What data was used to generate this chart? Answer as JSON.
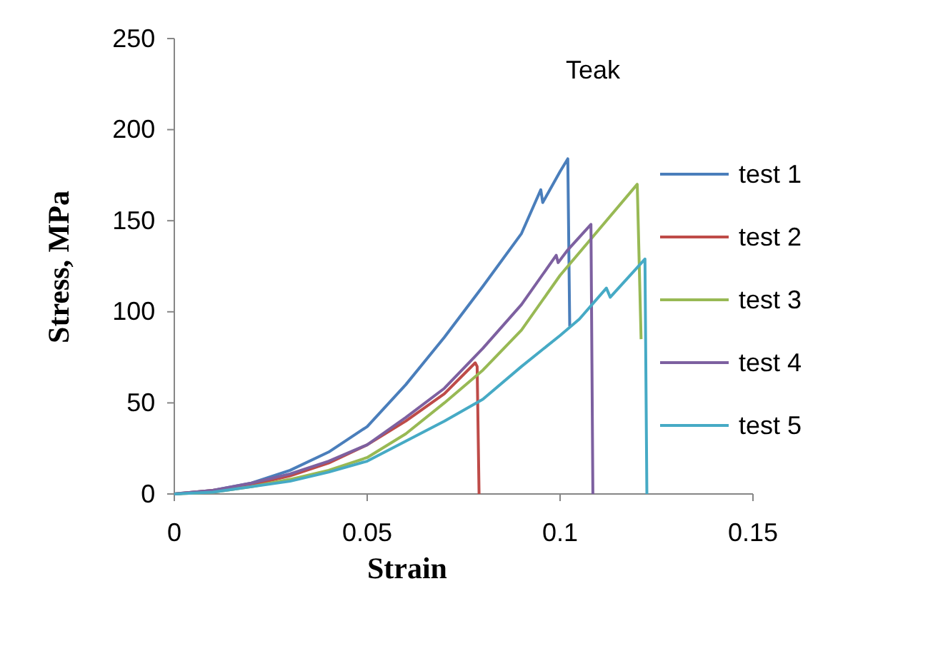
{
  "chart_data": {
    "type": "line",
    "title": "Teak",
    "xlabel": "Strain",
    "ylabel": "Stress, MPa",
    "xlim": [
      0,
      0.15
    ],
    "xticks": [
      0,
      0.05,
      0.1,
      0.15
    ],
    "ylim": [
      0,
      250
    ],
    "yticks": [
      0,
      50,
      100,
      150,
      200,
      250
    ],
    "grid": false,
    "legend": "right",
    "marker": "none",
    "line_style": "solid",
    "series": [
      {
        "name": "test 1",
        "color": "#4a7ebb",
        "x": [
          0,
          0.01,
          0.02,
          0.03,
          0.04,
          0.05,
          0.06,
          0.07,
          0.08,
          0.09,
          0.095,
          0.0955,
          0.1,
          0.102,
          0.1025
        ],
        "values": [
          0,
          2,
          6,
          13,
          23,
          37,
          60,
          86,
          114,
          143,
          167,
          160,
          177,
          184,
          92
        ]
      },
      {
        "name": "test 2",
        "color": "#be4b48",
        "x": [
          0,
          0.01,
          0.02,
          0.03,
          0.04,
          0.05,
          0.06,
          0.07,
          0.078,
          0.0785,
          0.079
        ],
        "values": [
          0,
          2,
          5,
          10,
          17,
          27,
          40,
          55,
          72,
          70,
          0
        ]
      },
      {
        "name": "test 3",
        "color": "#98b954",
        "x": [
          0,
          0.01,
          0.02,
          0.03,
          0.04,
          0.05,
          0.06,
          0.07,
          0.08,
          0.09,
          0.1,
          0.11,
          0.12,
          0.121
        ],
        "values": [
          0,
          1,
          4,
          8,
          13,
          20,
          33,
          50,
          68,
          90,
          120,
          145,
          170,
          85
        ]
      },
      {
        "name": "test 4",
        "color": "#7d60a0",
        "x": [
          0,
          0.01,
          0.02,
          0.03,
          0.04,
          0.05,
          0.06,
          0.07,
          0.08,
          0.09,
          0.099,
          0.0995,
          0.102,
          0.108,
          0.1085
        ],
        "values": [
          0,
          2,
          6,
          11,
          18,
          27,
          42,
          58,
          80,
          104,
          131,
          127,
          134,
          148,
          0
        ]
      },
      {
        "name": "test 5",
        "color": "#46aac5",
        "x": [
          0,
          0.01,
          0.02,
          0.03,
          0.04,
          0.05,
          0.06,
          0.07,
          0.08,
          0.09,
          0.1,
          0.105,
          0.112,
          0.113,
          0.122,
          0.1225
        ],
        "values": [
          0,
          1,
          4,
          7,
          12,
          18,
          29,
          40,
          52,
          70,
          87,
          96,
          113,
          108,
          129,
          0
        ]
      }
    ]
  }
}
